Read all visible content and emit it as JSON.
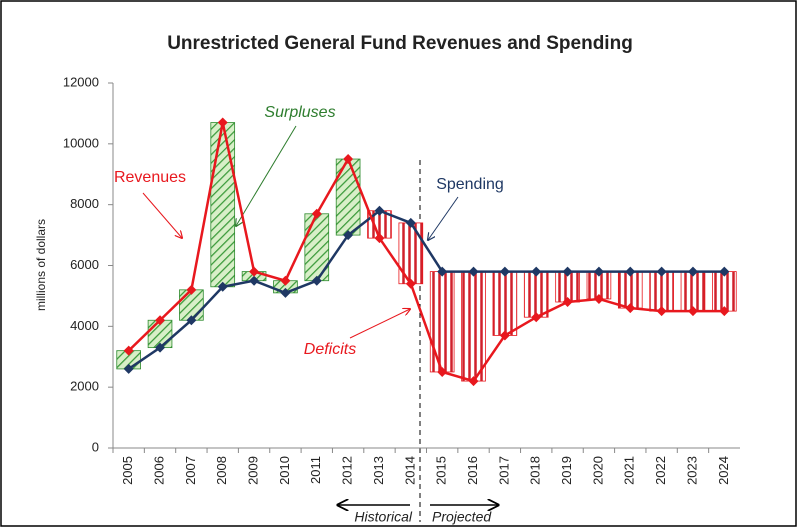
{
  "chart_data": {
    "type": "line",
    "title": "Unrestricted General Fund Revenues and Spending",
    "ylabel": "millions of dollars",
    "categories": [
      "2005",
      "2006",
      "2007",
      "2008",
      "2009",
      "2010",
      "2011",
      "2012",
      "2013",
      "2014",
      "2015",
      "2016",
      "2017",
      "2018",
      "2019",
      "2020",
      "2021",
      "2022",
      "2023",
      "2024"
    ],
    "series": [
      {
        "name": "Revenues",
        "color": "#e8181e",
        "values": [
          3200,
          4200,
          5200,
          10700,
          5800,
          5500,
          7700,
          9500,
          6900,
          5400,
          2500,
          2200,
          3700,
          4300,
          4800,
          4900,
          4600,
          4500,
          4500,
          4500
        ]
      },
      {
        "name": "Spending",
        "color": "#1f3864",
        "values": [
          2600,
          3300,
          4200,
          5300,
          5500,
          5100,
          5500,
          7000,
          7800,
          7400,
          5800,
          5800,
          5800,
          5800,
          5800,
          5800,
          5800,
          5800,
          5800,
          5800
        ]
      }
    ],
    "surplus_color": "#2e8b2e",
    "deficit_color": "#e8181e",
    "annotations": {
      "surpluses": "Surpluses",
      "revenues": "Revenues",
      "spending": "Spending",
      "deficits": "Deficits",
      "historical": "Historical",
      "projected": "Projected"
    },
    "ylim": [
      0,
      12000
    ],
    "yticks": [
      0,
      2000,
      4000,
      6000,
      8000,
      10000,
      12000
    ],
    "grid": false
  }
}
